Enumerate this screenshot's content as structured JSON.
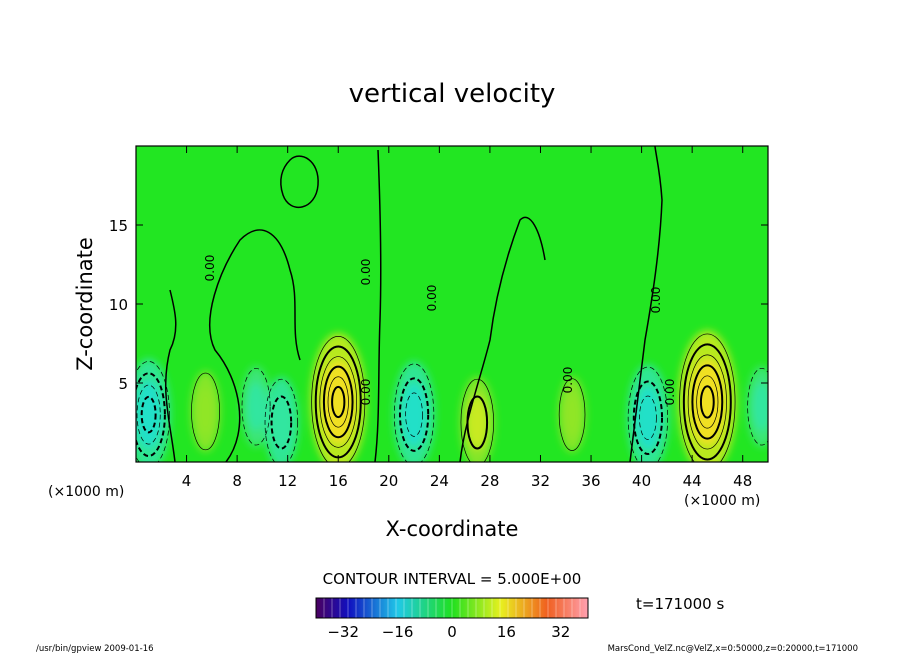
{
  "chart_data": {
    "type": "heatmap",
    "title": "vertical velocity",
    "xlabel": "X-coordinate",
    "ylabel": "Z-coordinate",
    "x_unit": "(×1000 m)",
    "xlim": [
      0,
      50
    ],
    "ylim": [
      0,
      20
    ],
    "x_ticks": [
      4,
      8,
      12,
      16,
      20,
      24,
      28,
      32,
      36,
      40,
      44,
      48
    ],
    "y_ticks": [
      5,
      10,
      15
    ],
    "contour_interval_text": "CONTOUR INTERVAL = 5.000E+00",
    "contour_label": "0.00",
    "time_text": "t=171000 s",
    "colorbar": {
      "range": [
        -40,
        40
      ],
      "ticks": [
        -32,
        -16,
        0,
        16,
        32
      ]
    },
    "features": [
      {
        "x": 1.0,
        "z": 3.0,
        "w": -20
      },
      {
        "x": 5.5,
        "z": 3.2,
        "w": 8
      },
      {
        "x": 9.5,
        "z": 3.5,
        "w": -8
      },
      {
        "x": 11.5,
        "z": 2.5,
        "w": -12
      },
      {
        "x": 16.0,
        "z": 3.8,
        "w": 30
      },
      {
        "x": 22.0,
        "z": 3.0,
        "w": -18
      },
      {
        "x": 27.0,
        "z": 2.5,
        "w": 12
      },
      {
        "x": 34.5,
        "z": 3.0,
        "w": 6
      },
      {
        "x": 40.5,
        "z": 2.8,
        "w": -18
      },
      {
        "x": 45.2,
        "z": 3.8,
        "w": 32
      },
      {
        "x": 49.5,
        "z": 3.5,
        "w": -8
      }
    ],
    "colors": {
      "background_field": "#22e622",
      "axes": "#000000"
    }
  },
  "footer": {
    "left": "/usr/bin/gpview  2009-01-16",
    "right": "MarsCond_VelZ.nc@VelZ,x=0:50000,z=0:20000,t=171000"
  }
}
